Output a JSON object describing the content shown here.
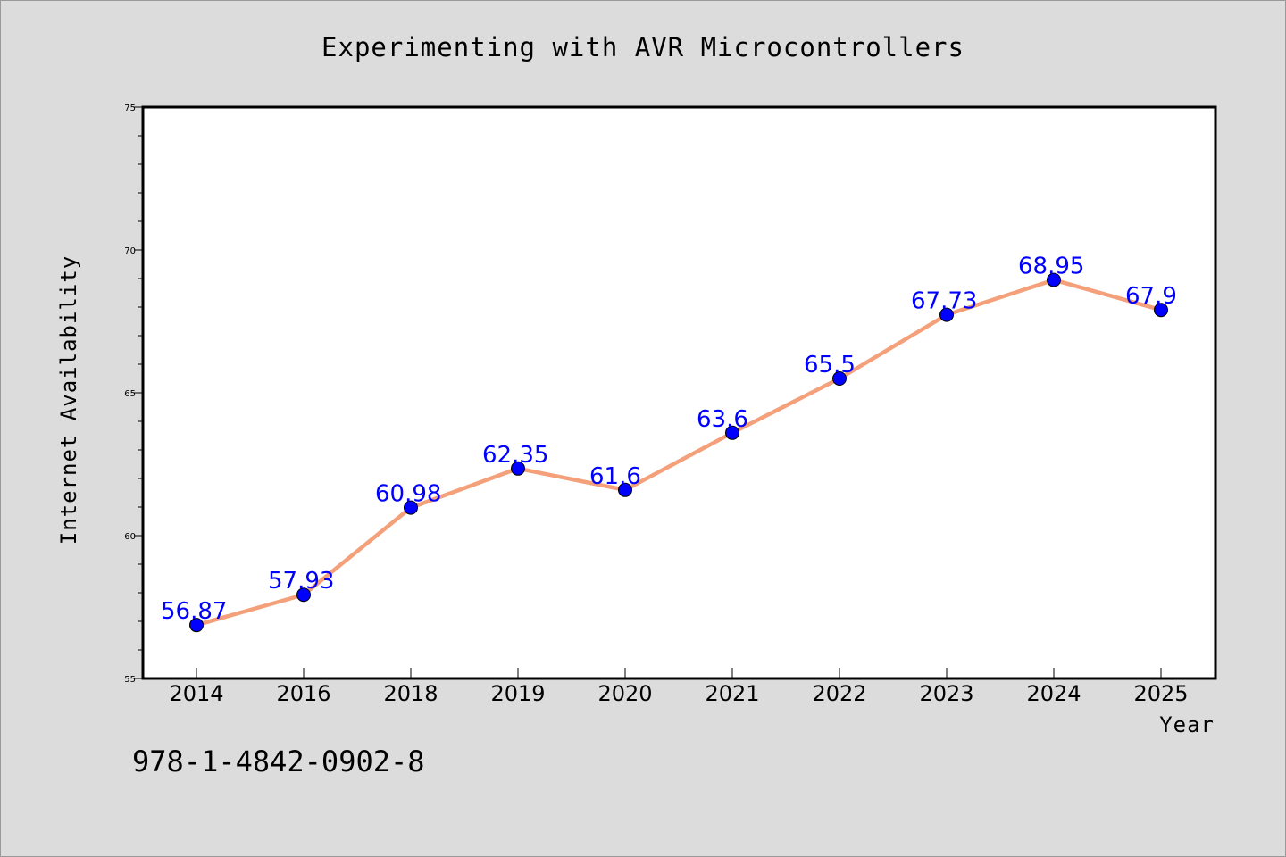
{
  "chart_data": {
    "type": "line",
    "title": "Experimenting with AVR Microcontrollers",
    "xlabel": "Year",
    "ylabel": "Internet Availability",
    "categories": [
      "2014",
      "2016",
      "2018",
      "2019",
      "2020",
      "2021",
      "2022",
      "2023",
      "2024",
      "2025"
    ],
    "series": [
      {
        "values": [
          56.87,
          57.93,
          60.98,
          62.35,
          61.6,
          63.6,
          65.5,
          67.73,
          68.95,
          67.9
        ],
        "labels": [
          "56.87",
          "57.93",
          "60.98",
          "62.35",
          "61.6",
          "63.6",
          "65.5",
          "67.73",
          "68.95",
          "67.9"
        ],
        "line_color": "#f4a07a",
        "marker_color": "#0000ff",
        "label_color": "#0000ff"
      }
    ],
    "ylim": [
      55,
      75
    ],
    "yticks": [
      "55",
      "60",
      "65",
      "70",
      "75"
    ],
    "grid": false,
    "legend": "none"
  },
  "footer_text": "978-1-4842-0902-8"
}
